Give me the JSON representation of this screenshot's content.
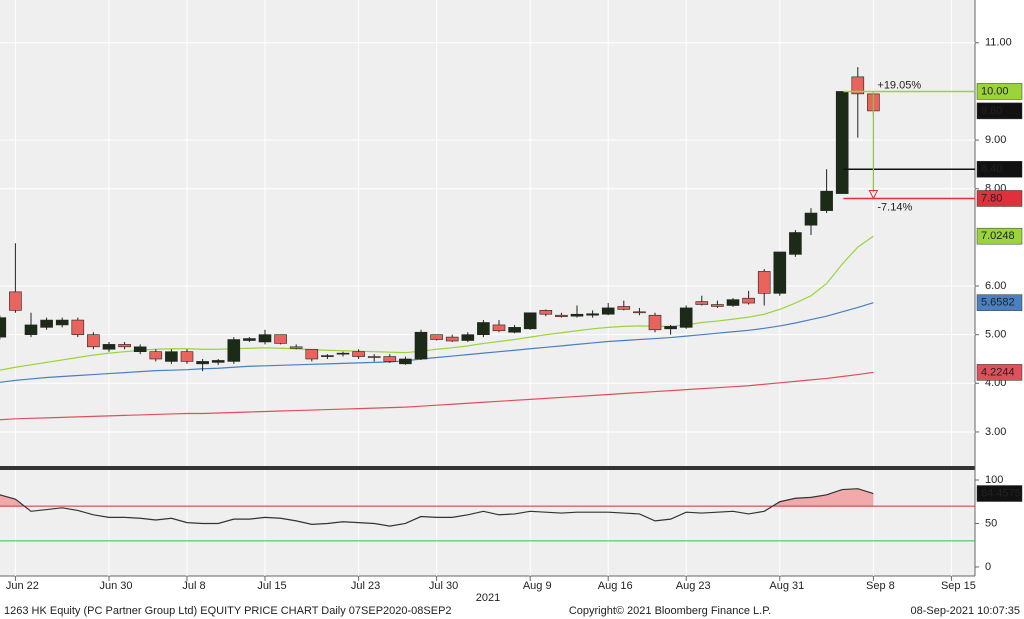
{
  "chart_data": [
    {
      "type": "candlestick",
      "categories": [
        null,
        "Jun 22",
        null,
        null,
        null,
        null,
        null,
        "Jun 30",
        null,
        null,
        null,
        null,
        "Jul 8",
        null,
        null,
        null,
        null,
        "Jul 15",
        null,
        null,
        null,
        null,
        null,
        "Jul 23",
        null,
        null,
        null,
        null,
        "Jul 30",
        null,
        null,
        null,
        null,
        null,
        "Aug 9",
        null,
        null,
        null,
        null,
        "Aug 16",
        null,
        null,
        null,
        null,
        "Aug 23",
        null,
        null,
        null,
        null,
        null,
        "Aug 31",
        null,
        null,
        null,
        null,
        null,
        "Sep 8",
        null,
        null,
        null,
        null,
        "Sep 15",
        null
      ],
      "x_sublabel": "2021",
      "open": [
        4.95,
        5.88,
        5.0,
        5.15,
        5.2,
        5.3,
        5.0,
        4.7,
        4.8,
        4.65,
        4.65,
        4.45,
        4.65,
        4.4,
        4.43,
        4.45,
        4.88,
        4.85,
        5.0,
        4.75,
        4.7,
        4.55,
        4.6,
        4.65,
        4.55,
        4.55,
        4.4,
        4.5,
        5.0,
        4.95,
        4.88,
        5.0,
        5.2,
        5.05,
        5.12,
        5.5,
        5.4,
        5.38,
        5.4,
        5.42,
        5.58,
        5.47,
        5.4,
        5.12,
        5.15,
        5.68,
        5.62,
        5.6,
        5.75,
        6.3,
        5.85,
        6.65,
        7.25,
        7.55,
        7.9,
        10.3,
        9.95,
        null,
        null,
        null,
        null,
        null,
        null
      ],
      "high": [
        5.4,
        6.88,
        5.45,
        5.35,
        5.35,
        5.35,
        5.05,
        4.85,
        4.85,
        4.8,
        4.7,
        4.7,
        4.7,
        4.5,
        4.5,
        4.95,
        4.95,
        5.1,
        5.0,
        4.8,
        4.7,
        4.6,
        4.65,
        4.7,
        4.6,
        4.6,
        4.55,
        5.1,
        5.0,
        5.0,
        5.05,
        5.3,
        5.3,
        5.2,
        5.45,
        5.52,
        5.45,
        5.6,
        5.5,
        5.65,
        5.7,
        5.55,
        5.45,
        5.2,
        5.6,
        5.8,
        5.7,
        5.75,
        5.9,
        6.35,
        6.7,
        7.15,
        7.6,
        8.4,
        10.0,
        10.5,
        10.0,
        null,
        null,
        null,
        null,
        null,
        null
      ],
      "low": [
        4.9,
        5.45,
        4.95,
        5.1,
        5.15,
        4.95,
        4.7,
        4.65,
        4.7,
        4.6,
        4.45,
        4.4,
        4.4,
        4.25,
        4.38,
        4.4,
        4.85,
        4.8,
        4.8,
        4.7,
        4.45,
        4.5,
        4.55,
        4.5,
        4.45,
        4.42,
        4.38,
        4.48,
        4.88,
        4.85,
        4.85,
        4.95,
        5.05,
        5.03,
        5.1,
        5.38,
        5.35,
        5.35,
        5.35,
        5.4,
        5.5,
        5.4,
        5.05,
        5.0,
        5.12,
        5.6,
        5.55,
        5.57,
        5.62,
        5.6,
        5.8,
        6.6,
        7.05,
        7.5,
        7.9,
        9.05,
        9.5,
        null,
        null,
        null,
        null,
        null,
        null
      ],
      "close": [
        5.35,
        5.5,
        5.2,
        5.3,
        5.3,
        5.0,
        4.75,
        4.8,
        4.75,
        4.75,
        4.5,
        4.65,
        4.45,
        4.45,
        4.47,
        4.9,
        4.92,
        5.0,
        4.82,
        4.72,
        4.5,
        4.57,
        4.62,
        4.55,
        4.53,
        4.45,
        4.5,
        5.05,
        4.9,
        4.87,
        5.0,
        5.25,
        5.08,
        5.15,
        5.45,
        5.42,
        5.37,
        5.42,
        5.43,
        5.55,
        5.52,
        5.45,
        5.1,
        5.17,
        5.55,
        5.62,
        5.58,
        5.72,
        5.65,
        5.85,
        6.7,
        7.1,
        7.5,
        7.95,
        10.0,
        9.95,
        9.6,
        null,
        null,
        null,
        null,
        null,
        null
      ],
      "up_color": "#1c2a18",
      "down_color": "#e8645c",
      "series": [
        {
          "color": "#9ad43a",
          "values": [
            4.27,
            4.33,
            4.38,
            4.43,
            4.48,
            4.53,
            4.58,
            4.62,
            4.65,
            4.68,
            4.7,
            4.71,
            4.71,
            4.7,
            4.7,
            4.71,
            4.72,
            4.73,
            4.72,
            4.71,
            4.69,
            4.68,
            4.67,
            4.66,
            4.65,
            4.64,
            4.63,
            4.66,
            4.7,
            4.73,
            4.77,
            4.82,
            4.86,
            4.9,
            4.95,
            5.0,
            5.04,
            5.08,
            5.12,
            5.15,
            5.17,
            5.18,
            5.17,
            5.17,
            5.2,
            5.25,
            5.28,
            5.32,
            5.36,
            5.42,
            5.52,
            5.65,
            5.8,
            6.05,
            6.45,
            6.8,
            7.0248,
            null,
            null,
            null,
            null,
            null,
            null
          ]
        },
        {
          "color": "#4a7fc1",
          "values": [
            4.02,
            4.06,
            4.09,
            4.12,
            4.14,
            4.16,
            4.18,
            4.2,
            4.22,
            4.24,
            4.26,
            4.27,
            4.28,
            4.3,
            4.31,
            4.33,
            4.35,
            4.36,
            4.37,
            4.38,
            4.39,
            4.4,
            4.41,
            4.42,
            4.43,
            4.44,
            4.46,
            4.5,
            4.53,
            4.56,
            4.59,
            4.62,
            4.65,
            4.68,
            4.71,
            4.74,
            4.77,
            4.8,
            4.83,
            4.86,
            4.88,
            4.9,
            4.92,
            4.94,
            4.97,
            5.0,
            5.03,
            5.06,
            5.09,
            5.13,
            5.18,
            5.24,
            5.31,
            5.38,
            5.47,
            5.56,
            5.6582,
            null,
            null,
            null,
            null,
            null,
            null
          ]
        },
        {
          "color": "#e0505a",
          "values": [
            3.25,
            3.27,
            3.28,
            3.29,
            3.3,
            3.31,
            3.32,
            3.33,
            3.34,
            3.35,
            3.36,
            3.37,
            3.38,
            3.38,
            3.39,
            3.4,
            3.41,
            3.42,
            3.43,
            3.44,
            3.45,
            3.46,
            3.47,
            3.48,
            3.49,
            3.5,
            3.51,
            3.53,
            3.55,
            3.57,
            3.59,
            3.61,
            3.63,
            3.65,
            3.67,
            3.69,
            3.71,
            3.73,
            3.75,
            3.77,
            3.79,
            3.81,
            3.83,
            3.85,
            3.87,
            3.89,
            3.91,
            3.93,
            3.95,
            3.98,
            4.01,
            4.04,
            4.07,
            4.1,
            4.14,
            4.18,
            4.2244,
            null,
            null,
            null,
            null,
            null,
            null
          ]
        }
      ],
      "ylim": [
        2.3,
        11.88
      ],
      "yticks": [
        {
          "value": 3,
          "label": "3.00"
        },
        {
          "value": 4,
          "label": "4.00"
        },
        {
          "value": 5,
          "label": "5.00"
        },
        {
          "value": 6,
          "label": "6.00"
        },
        {
          "value": 8,
          "label": "8.00"
        },
        {
          "value": 9,
          "label": "9.00"
        },
        {
          "value": 11,
          "label": "11.00"
        }
      ],
      "grid": true,
      "levels": [
        {
          "value": 10,
          "label": "10.00",
          "color": "#9ad43a",
          "line": true
        },
        {
          "value": 9.6,
          "label": "9.60",
          "color": "#111111",
          "line": false
        },
        {
          "value": 8.4,
          "label": "8.40",
          "color": "#111111",
          "line": true
        },
        {
          "value": 7.8,
          "label": "7.80",
          "color": "#e0303c",
          "line": true
        }
      ],
      "annotations": [
        {
          "text": "+19.05%",
          "color": "#8cc63f"
        },
        {
          "text": "-7.14%",
          "color": "#e0303c"
        }
      ]
    },
    {
      "type": "line",
      "values": [
        83,
        78,
        64,
        66,
        68,
        65,
        60,
        57,
        57,
        56,
        54,
        56,
        51,
        50,
        50,
        55,
        55,
        57,
        56,
        53,
        49,
        50,
        52,
        51,
        50,
        47,
        50,
        58,
        57,
        57,
        60,
        64,
        60,
        61,
        64,
        63,
        62,
        63,
        63,
        63,
        62,
        61,
        53,
        55,
        63,
        62,
        63,
        64,
        61,
        64,
        75,
        79,
        80,
        83,
        89,
        90,
        84.4575,
        null,
        null,
        null,
        null,
        null,
        null
      ],
      "color": "#333333",
      "tag_color": "#111111",
      "fill_color": "#f2a9a9",
      "ylim": [
        -10.4,
        111.5
      ],
      "yticks": [
        0,
        50,
        100
      ],
      "levels": [
        {
          "value": 70,
          "color": "#d03030"
        },
        {
          "value": 30,
          "color": "#3cbf3c"
        }
      ]
    }
  ],
  "footer": {
    "left": "1263 HK Equity (PC Partner Group Ltd) EQUITY PRICE CHART  Daily 07SEP2020-08SEP2",
    "center": "Copyright© 2021 Bloomberg Finance L.P.",
    "right": "08-Sep-2021 10:07:35"
  }
}
